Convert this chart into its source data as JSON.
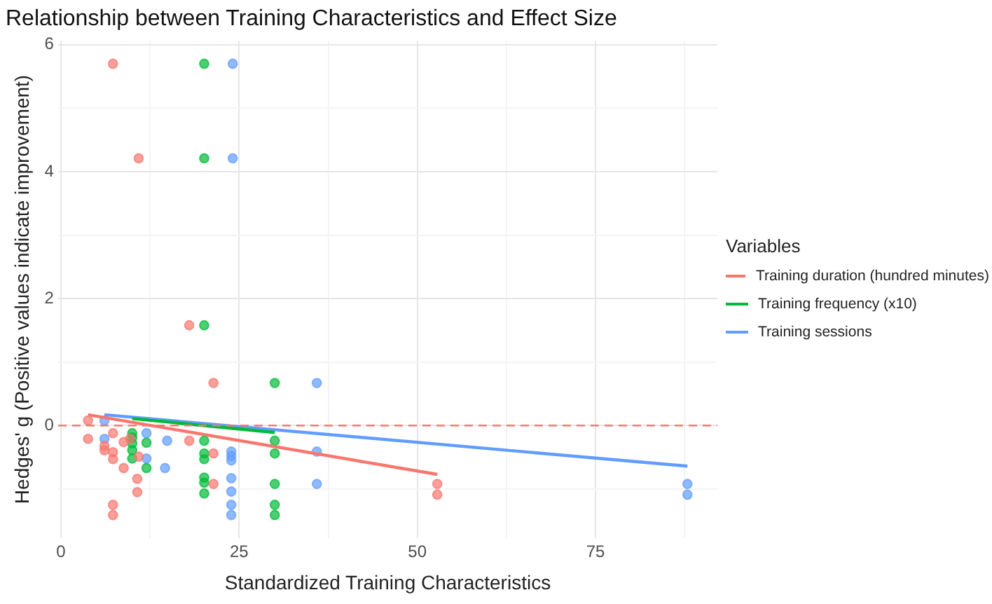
{
  "chart_data": {
    "type": "scatter",
    "title": "Relationship between Training Characteristics and Effect Size",
    "xlabel": "Standardized Training Characteristics",
    "ylabel": "Hedges' g (Positive values indicate improvement)",
    "legend_title": "Variables",
    "legend": "right",
    "grid": true,
    "marker": "circle",
    "xlim": [
      -0.4,
      92.1
    ],
    "ylim": [
      -1.77,
      6.06
    ],
    "xticks": [
      0,
      {
        "value": 12.5,
        "label": null
      },
      25,
      {
        "value": 37.5,
        "label": null
      },
      50,
      {
        "value": 62.5,
        "label": null
      },
      75,
      {
        "value": 87.5,
        "label": null
      }
    ],
    "yticks": [
      {
        "value": -1,
        "label": null
      },
      0,
      {
        "value": 1,
        "label": null
      },
      2,
      {
        "value": 3,
        "label": null
      },
      4,
      {
        "value": 5,
        "label": null
      },
      6
    ],
    "ref_lines": [
      {
        "axis": "y",
        "value": 0,
        "label": null,
        "color": "#f8766d",
        "line_style": "dashed"
      }
    ],
    "series": [
      {
        "name": "Training duration (hundred minutes)",
        "color": "#f8766d",
        "x": [
          7.3,
          10.9,
          18.0,
          21.4,
          3.8,
          3.8,
          6.1,
          6.1,
          7.3,
          7.3,
          7.3,
          8.8,
          8.8,
          9.7,
          10.9,
          10.7,
          10.7,
          7.3,
          7.3,
          18.0,
          21.4,
          21.4,
          52.8,
          52.8
        ],
        "values": [
          5.7,
          4.21,
          1.58,
          0.67,
          0.08,
          -0.21,
          -0.32,
          -0.39,
          -0.12,
          -0.42,
          -0.53,
          -0.26,
          -0.67,
          -0.21,
          -0.49,
          -0.84,
          -1.05,
          -1.25,
          -1.41,
          -0.24,
          -0.44,
          -0.92,
          -0.92,
          -1.09
        ]
      },
      {
        "name": "Training frequency (x10)",
        "color": "#00ba38",
        "x": [
          20.1,
          20.1,
          20.1,
          30.0,
          10.0,
          10.0,
          10.0,
          10.0,
          10.0,
          12.0,
          12.0,
          20.1,
          20.1,
          20.1,
          20.1,
          20.1,
          20.1,
          30.0,
          30.0,
          30.0,
          30.0,
          30.0
        ],
        "values": [
          5.7,
          4.21,
          1.58,
          0.67,
          -0.12,
          -0.19,
          -0.28,
          -0.39,
          -0.52,
          -0.27,
          -0.67,
          -0.24,
          -0.44,
          -0.53,
          -0.82,
          -0.9,
          -1.07,
          -0.24,
          -0.44,
          -0.92,
          -1.25,
          -1.41
        ]
      },
      {
        "name": "Training sessions",
        "color": "#619cff",
        "x": [
          24.1,
          24.1,
          35.9,
          6.1,
          6.1,
          12.0,
          12.0,
          14.6,
          14.9,
          23.9,
          23.9,
          23.9,
          23.9,
          23.9,
          23.9,
          23.9,
          35.9,
          35.9,
          87.9,
          87.9
        ],
        "values": [
          5.7,
          4.21,
          0.67,
          0.08,
          -0.21,
          -0.12,
          -0.52,
          -0.67,
          -0.24,
          -0.41,
          -0.48,
          -0.55,
          -0.83,
          -1.04,
          -1.25,
          -1.41,
          -0.41,
          -0.92,
          -0.92,
          -1.09
        ]
      },
      {
        "type": "line",
        "marker": "none",
        "color": "#f8766d",
        "x": [
          3.8,
          52.8
        ],
        "values": [
          0.17,
          -0.77
        ]
      },
      {
        "type": "line",
        "marker": "none",
        "color": "#00ba38",
        "x": [
          10.0,
          30.0
        ],
        "values": [
          0.11,
          -0.11
        ]
      },
      {
        "type": "line",
        "marker": "none",
        "color": "#619cff",
        "x": [
          6.1,
          87.9
        ],
        "values": [
          0.17,
          -0.64
        ]
      }
    ]
  }
}
